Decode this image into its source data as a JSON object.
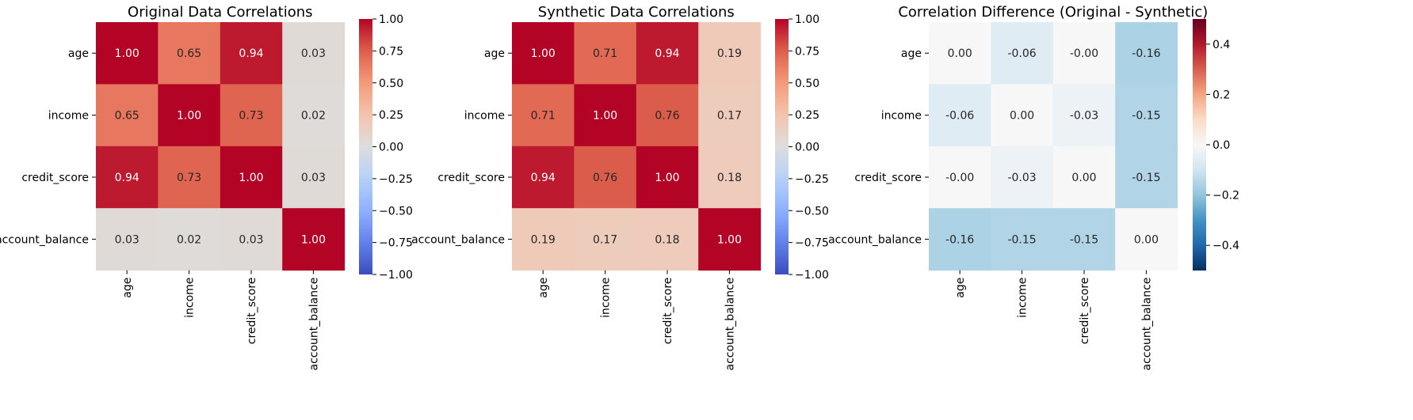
{
  "chart_data": [
    {
      "type": "heatmap",
      "title": "Original Data Correlations",
      "x_labels": [
        "age",
        "income",
        "credit_score",
        "account_balance"
      ],
      "y_labels": [
        "age",
        "income",
        "credit_score",
        "account_balance"
      ],
      "values": [
        [
          1.0,
          0.65,
          0.94,
          0.03
        ],
        [
          0.65,
          1.0,
          0.73,
          0.02
        ],
        [
          0.94,
          0.73,
          1.0,
          0.03
        ],
        [
          0.03,
          0.02,
          0.03,
          1.0
        ]
      ],
      "annotations": [
        [
          "1.00",
          "0.65",
          "0.94",
          "0.03"
        ],
        [
          "0.65",
          "1.00",
          "0.73",
          "0.02"
        ],
        [
          "0.94",
          "0.73",
          "1.00",
          "0.03"
        ],
        [
          "0.03",
          "0.02",
          "0.03",
          "1.00"
        ]
      ],
      "colormap": "coolwarm",
      "vmin": -1,
      "vmax": 1,
      "colorbar_ticks": [
        1.0,
        0.75,
        0.5,
        0.25,
        0.0,
        -0.25,
        -0.5,
        -0.75,
        -1.0
      ],
      "colorbar_tick_labels": [
        "1.00",
        "0.75",
        "0.50",
        "0.25",
        "0.00",
        "−0.25",
        "−0.50",
        "−0.75",
        "−1.00"
      ]
    },
    {
      "type": "heatmap",
      "title": "Synthetic Data Correlations",
      "x_labels": [
        "age",
        "income",
        "credit_score",
        "account_balance"
      ],
      "y_labels": [
        "age",
        "income",
        "credit_score",
        "account_balance"
      ],
      "values": [
        [
          1.0,
          0.71,
          0.94,
          0.19
        ],
        [
          0.71,
          1.0,
          0.76,
          0.17
        ],
        [
          0.94,
          0.76,
          1.0,
          0.18
        ],
        [
          0.19,
          0.17,
          0.18,
          1.0
        ]
      ],
      "annotations": [
        [
          "1.00",
          "0.71",
          "0.94",
          "0.19"
        ],
        [
          "0.71",
          "1.00",
          "0.76",
          "0.17"
        ],
        [
          "0.94",
          "0.76",
          "1.00",
          "0.18"
        ],
        [
          "0.19",
          "0.17",
          "0.18",
          "1.00"
        ]
      ],
      "colormap": "coolwarm",
      "vmin": -1,
      "vmax": 1,
      "colorbar_ticks": [
        1.0,
        0.75,
        0.5,
        0.25,
        0.0,
        -0.25,
        -0.5,
        -0.75,
        -1.0
      ],
      "colorbar_tick_labels": [
        "1.00",
        "0.75",
        "0.50",
        "0.25",
        "0.00",
        "−0.25",
        "−0.50",
        "−0.75",
        "−1.00"
      ]
    },
    {
      "type": "heatmap",
      "title": "Correlation Difference (Original - Synthetic)",
      "x_labels": [
        "age",
        "income",
        "credit_score",
        "account_balance"
      ],
      "y_labels": [
        "age",
        "income",
        "credit_score",
        "account_balance"
      ],
      "values": [
        [
          0.0,
          -0.06,
          -0.0,
          -0.16
        ],
        [
          -0.06,
          0.0,
          -0.03,
          -0.15
        ],
        [
          -0.0,
          -0.03,
          0.0,
          -0.15
        ],
        [
          -0.16,
          -0.15,
          -0.15,
          0.0
        ]
      ],
      "annotations": [
        [
          "0.00",
          "-0.06",
          "-0.00",
          "-0.16"
        ],
        [
          "-0.06",
          "0.00",
          "-0.03",
          "-0.15"
        ],
        [
          "-0.00",
          "-0.03",
          "0.00",
          "-0.15"
        ],
        [
          "-0.16",
          "-0.15",
          "-0.15",
          "0.00"
        ]
      ],
      "colormap": "RdBu_r",
      "vmin": -0.5,
      "vmax": 0.5,
      "colorbar_ticks": [
        0.4,
        0.2,
        0.0,
        -0.2,
        -0.4
      ],
      "colorbar_tick_labels": [
        "0.4",
        "0.2",
        "0.0",
        "−0.2",
        "−0.4"
      ]
    }
  ]
}
